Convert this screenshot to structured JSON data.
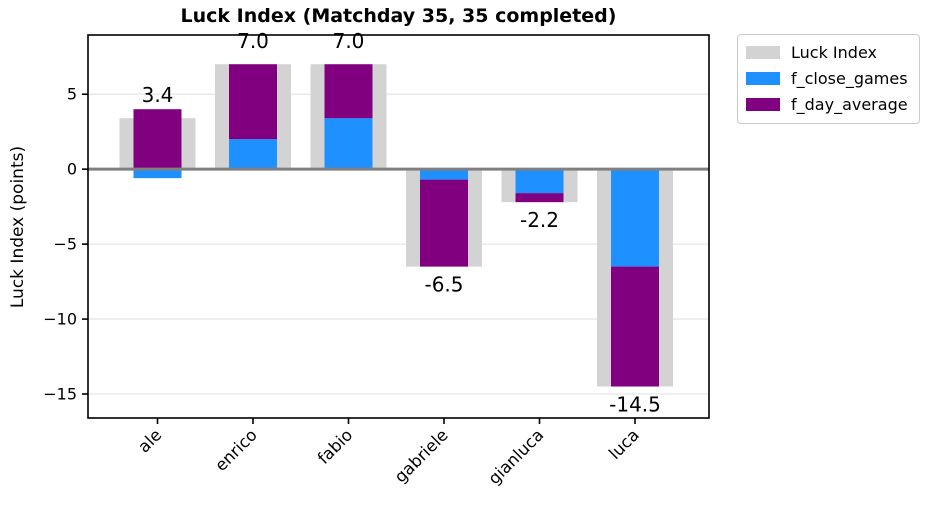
{
  "chart_data": {
    "type": "bar",
    "title": "Luck Index (Matchday 35, 35 completed)",
    "ylabel": "Luck Index (points)",
    "xlabel": "",
    "categories": [
      "ale",
      "enrico",
      "fabio",
      "gabriele",
      "gianluca",
      "luca"
    ],
    "series": [
      {
        "name": "Luck Index",
        "role": "total",
        "color": "#d3d3d3",
        "values": [
          3.4,
          7.0,
          7.0,
          -6.5,
          -2.2,
          -14.5
        ]
      },
      {
        "name": "f_close_games",
        "role": "component",
        "color": "#1e90ff",
        "values": [
          -0.6,
          2.0,
          3.4,
          -0.7,
          -1.6,
          -6.5
        ]
      },
      {
        "name": "f_day_average",
        "role": "component",
        "color": "#800080",
        "values": [
          4.0,
          5.0,
          3.6,
          -5.8,
          -0.6,
          -8.0
        ]
      }
    ],
    "bar_total_labels": [
      "3.4",
      "7.0",
      "7.0",
      "-6.5",
      "-2.2",
      "-14.5"
    ],
    "yticks": [
      5,
      0,
      -5,
      -10,
      -15
    ],
    "ylim": [
      -16.6,
      8.95
    ],
    "grid": "horizontal",
    "gridline_color": "#e7e7e7",
    "zero_line_color": "#808080",
    "axis_color": "#000000",
    "legend_position": "outside-upper-right",
    "legend": [
      {
        "label": "Luck Index",
        "color": "#d3d3d3"
      },
      {
        "label": "f_close_games",
        "color": "#1e90ff"
      },
      {
        "label": "f_day_average",
        "color": "#800080"
      }
    ]
  }
}
